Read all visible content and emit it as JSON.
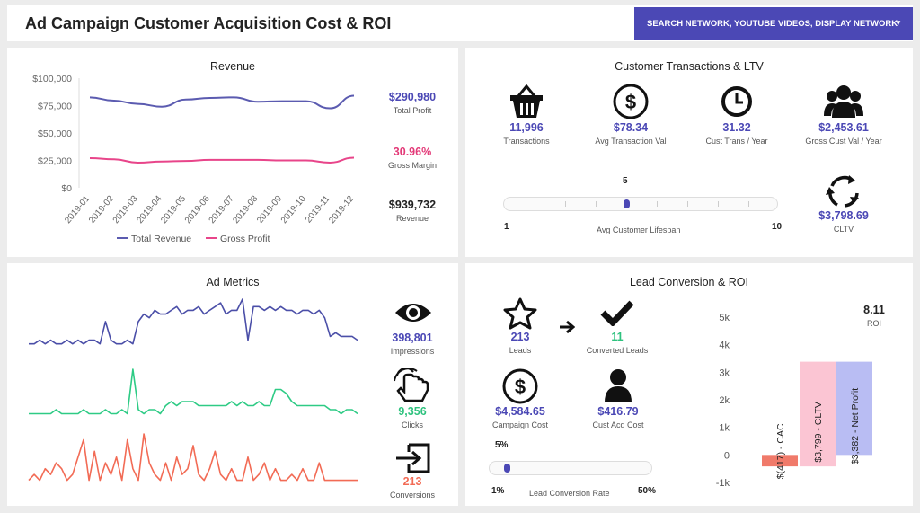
{
  "header": {
    "title": "Ad Campaign Customer Acquisition Cost & ROI",
    "dropdown_label": "SEARCH NETWORK, YOUTUBE VIDEOS, DISPLAY NETWORK",
    "caret": "▾"
  },
  "revenue": {
    "title": "Revenue",
    "kpis": [
      {
        "value": "$290,980",
        "label": "Total Profit"
      },
      {
        "value": "30.96%",
        "label": "Gross Margin"
      },
      {
        "value": "$939,732",
        "label": "Revenue"
      }
    ],
    "legend": [
      "Total Revenue",
      "Gross Profit"
    ]
  },
  "transactions": {
    "title": "Customer Transactions & LTV",
    "kpis": [
      {
        "value": "11,996",
        "label": "Transactions",
        "icon": "basket-icon"
      },
      {
        "value": "$78.34",
        "label": "Avg Transaction Val",
        "icon": "dollar-circle-icon"
      },
      {
        "value": "31.32",
        "label": "Cust Trans / Year",
        "icon": "clock-icon"
      },
      {
        "value": "$2,453.61",
        "label": "Gross Cust Val / Year",
        "icon": "users-icon"
      }
    ],
    "cltv": {
      "value": "$3,798.69",
      "label": "CLTV",
      "icon": "cycle-icon"
    },
    "slider": {
      "value_label": "5",
      "min_label": "1",
      "max_label": "10",
      "label": "Avg Customer Lifespan",
      "fraction": 0.444
    }
  },
  "ad_metrics": {
    "title": "Ad Metrics",
    "kpis": [
      {
        "value": "398,801",
        "label": "Impressions",
        "icon": "eye-icon"
      },
      {
        "value": "9,356",
        "label": "Clicks",
        "icon": "pointer-click-icon"
      },
      {
        "value": "213",
        "label": "Conversions",
        "icon": "sign-in-icon"
      }
    ]
  },
  "lead": {
    "title": "Lead Conversion & ROI",
    "kpis": [
      {
        "value": "213",
        "label": "Leads",
        "icon": "star-icon"
      },
      {
        "value": "11",
        "label": "Converted Leads",
        "icon": "check-icon"
      },
      {
        "value": "$4,584.65",
        "label": "Campaign Cost",
        "icon": "dollar-circle-icon"
      },
      {
        "value": "$416.79",
        "label": "Cust Acq Cost",
        "icon": "user-icon"
      }
    ],
    "roi": {
      "value": "8.11",
      "label": "ROI"
    },
    "slider": {
      "value_label": "5%",
      "min_label": "1%",
      "max_label": "50%",
      "label": "Lead Conversion Rate",
      "fraction": 0.08
    }
  },
  "chart_data": [
    {
      "type": "line",
      "title": "",
      "categories": [
        "2019-01",
        "2019-02",
        "2019-03",
        "2019-04",
        "2019-05",
        "2019-06",
        "2019-07",
        "2019-08",
        "2019-09",
        "2019-10",
        "2019-11",
        "2019-12"
      ],
      "ylim": [
        0,
        100000
      ],
      "yticks": [
        "$0",
        "$25,000",
        "$50,000",
        "$75,000",
        "$100,000"
      ],
      "series": [
        {
          "name": "Total Revenue",
          "color": "#5b5bb0",
          "values": [
            82500,
            79500,
            76500,
            74000,
            80500,
            82000,
            82500,
            78500,
            79000,
            79000,
            72500,
            84000
          ]
        },
        {
          "name": "Gross Profit",
          "color": "#e8458a",
          "values": [
            27000,
            26000,
            23000,
            24000,
            24500,
            25500,
            25500,
            25500,
            25000,
            25000,
            23000,
            27500
          ]
        }
      ]
    },
    {
      "type": "line",
      "title": "Ad Metrics sparklines",
      "series": [
        {
          "name": "Impressions",
          "color": "#4b4fa8",
          "values": [
            2,
            2,
            3,
            2,
            3,
            2,
            2,
            3,
            2,
            3,
            2,
            3,
            3,
            2,
            8,
            3,
            2,
            2,
            3,
            2,
            8,
            10,
            9,
            11,
            10,
            10,
            11,
            12,
            10,
            11,
            11,
            12,
            10,
            11,
            12,
            13,
            10,
            11,
            11,
            14,
            3,
            12,
            12,
            11,
            12,
            11,
            12,
            11,
            11,
            10,
            11,
            11,
            10,
            11,
            9,
            4,
            5,
            4,
            4,
            4,
            3
          ]
        },
        {
          "name": "Clicks",
          "color": "#2ecb85",
          "values": [
            1,
            1,
            1,
            1,
            1,
            2,
            1,
            1,
            1,
            1,
            2,
            1,
            1,
            1,
            2,
            1,
            1,
            2,
            1,
            12,
            2,
            1,
            2,
            2,
            1,
            3,
            4,
            3,
            4,
            4,
            4,
            3,
            3,
            3,
            3,
            3,
            3,
            4,
            3,
            4,
            3,
            3,
            4,
            3,
            3,
            7,
            7,
            6,
            4,
            3,
            3,
            3,
            3,
            3,
            3,
            2,
            2,
            1,
            2,
            2,
            1
          ]
        },
        {
          "name": "Conversions",
          "color": "#f26b55",
          "values": [
            1,
            2,
            1,
            3,
            2,
            4,
            3,
            1,
            2,
            5,
            8,
            1,
            6,
            1,
            4,
            2,
            5,
            1,
            8,
            3,
            1,
            9,
            4,
            2,
            1,
            4,
            1,
            5,
            2,
            3,
            7,
            2,
            1,
            3,
            6,
            2,
            1,
            3,
            1,
            1,
            5,
            1,
            2,
            4,
            1,
            3,
            1,
            1,
            2,
            1,
            3,
            1,
            1,
            4,
            1,
            1,
            1,
            1,
            1,
            1,
            1
          ]
        }
      ]
    },
    {
      "type": "bar",
      "title": "",
      "categories": [
        "CAC",
        "CLTV",
        "Net Profit"
      ],
      "values": [
        -417,
        3799,
        3382
      ],
      "bar_labels": [
        "$(417) - CAC",
        "$3,799 - CLTV",
        "$3,382 - Net Profit"
      ],
      "colors": [
        "#f07a6a",
        "#fbc5d3",
        "#b9bdf3"
      ],
      "ylim": [
        -1000,
        5000
      ],
      "yticks": [
        "-1k",
        "0",
        "1k",
        "2k",
        "3k",
        "4k",
        "5k"
      ]
    }
  ]
}
